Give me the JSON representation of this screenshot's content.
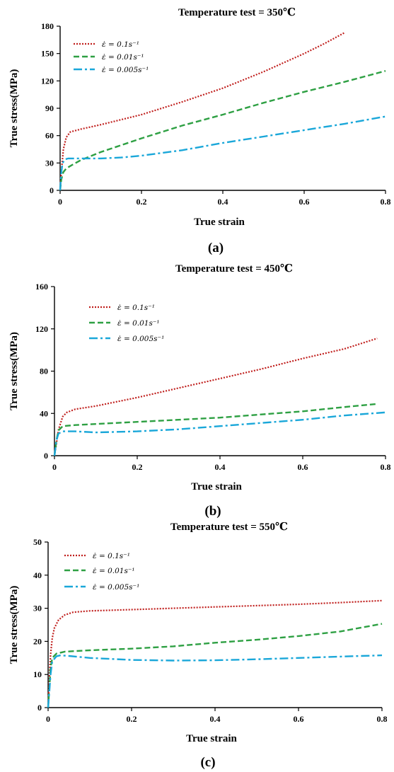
{
  "chart_data": [
    {
      "type": "line",
      "panel": "(a)",
      "title": "Temperature test = 350℃",
      "xlabel": "True strain",
      "ylabel": "True stress(MPa)",
      "xlim": [
        0,
        0.8
      ],
      "ylim": [
        0,
        180
      ],
      "xticks": [
        "0",
        "0.2",
        "0.4",
        "0.6",
        "0.8"
      ],
      "yticks": [
        "0",
        "30",
        "60",
        "90",
        "120",
        "150",
        "180"
      ],
      "legend_position": "top-left",
      "series": [
        {
          "name": "ε̇ = 0.1s⁻¹",
          "color": "#c0201e",
          "style": "dotted",
          "x": [
            0,
            0.003,
            0.008,
            0.015,
            0.025,
            0.05,
            0.1,
            0.2,
            0.3,
            0.4,
            0.5,
            0.6,
            0.65,
            0.7
          ],
          "y": [
            0,
            20,
            45,
            58,
            64,
            67,
            72,
            83,
            97,
            112,
            130,
            150,
            161,
            173
          ]
        },
        {
          "name": "ε̇ = 0.01s⁻¹",
          "color": "#2ea043",
          "style": "dashed",
          "x": [
            0,
            0.003,
            0.008,
            0.015,
            0.03,
            0.05,
            0.1,
            0.2,
            0.3,
            0.4,
            0.5,
            0.6,
            0.7,
            0.8
          ],
          "y": [
            0,
            12,
            20,
            24,
            28,
            33,
            42,
            57,
            71,
            83,
            96,
            108,
            119,
            131
          ]
        },
        {
          "name": "ε̇ = 0.005s⁻¹",
          "color": "#1aa7d9",
          "style": "dashdot",
          "x": [
            0,
            0.003,
            0.006,
            0.012,
            0.02,
            0.05,
            0.1,
            0.15,
            0.2,
            0.3,
            0.4,
            0.5,
            0.6,
            0.7,
            0.8
          ],
          "y": [
            0,
            20,
            30,
            34,
            35,
            35,
            35,
            36,
            38,
            44,
            52,
            59,
            66,
            73,
            81
          ]
        }
      ]
    },
    {
      "type": "line",
      "panel": "(b)",
      "title": "Temperature test = 450℃",
      "xlabel": "True strain",
      "ylabel": "True stress(MPa)",
      "xlim": [
        0,
        0.8
      ],
      "ylim": [
        0,
        160
      ],
      "xticks": [
        "0",
        "0.2",
        "0.4",
        "0.6",
        "0.8"
      ],
      "yticks": [
        "0",
        "40",
        "80",
        "120",
        "160"
      ],
      "legend_position": "top-left",
      "series": [
        {
          "name": "ε̇ = 0.1s⁻¹",
          "color": "#c0201e",
          "style": "dotted",
          "x": [
            0,
            0.005,
            0.01,
            0.02,
            0.03,
            0.05,
            0.1,
            0.2,
            0.3,
            0.4,
            0.5,
            0.6,
            0.7,
            0.78
          ],
          "y": [
            0,
            12,
            25,
            37,
            41,
            44,
            47,
            55,
            64,
            73,
            82,
            92,
            101,
            111
          ]
        },
        {
          "name": "ε̇ = 0.01s⁻¹",
          "color": "#2ea043",
          "style": "dashed",
          "x": [
            0,
            0.005,
            0.01,
            0.02,
            0.05,
            0.1,
            0.2,
            0.3,
            0.4,
            0.5,
            0.6,
            0.7,
            0.78
          ],
          "y": [
            0,
            15,
            24,
            28,
            29,
            30,
            32,
            34,
            36,
            39,
            42,
            46,
            49
          ]
        },
        {
          "name": "ε̇ = 0.005s⁻¹",
          "color": "#1aa7d9",
          "style": "dashdot",
          "x": [
            0,
            0.005,
            0.01,
            0.02,
            0.05,
            0.1,
            0.2,
            0.3,
            0.4,
            0.5,
            0.6,
            0.7,
            0.8
          ],
          "y": [
            0,
            15,
            21,
            23,
            23,
            22,
            23,
            25,
            28,
            31,
            34,
            38,
            41
          ]
        }
      ]
    },
    {
      "type": "line",
      "panel": "(c)",
      "title": "Temperature test = 550℃",
      "xlabel": "True strain",
      "ylabel": "True stress(MPa)",
      "xlim": [
        0,
        0.8
      ],
      "ylim": [
        0,
        50
      ],
      "xticks": [
        "0",
        "0.2",
        "0.4",
        "0.6",
        "0.8"
      ],
      "yticks": [
        "0",
        "10",
        "20",
        "30",
        "40",
        "50"
      ],
      "legend_position": "top-left",
      "series": [
        {
          "name": "ε̇ = 0.1s⁻¹",
          "color": "#c0201e",
          "style": "dotted",
          "x": [
            0,
            0.003,
            0.006,
            0.01,
            0.015,
            0.025,
            0.04,
            0.06,
            0.1,
            0.2,
            0.3,
            0.4,
            0.5,
            0.6,
            0.7,
            0.8
          ],
          "y": [
            0,
            9,
            16,
            21,
            24,
            26.5,
            28,
            28.8,
            29.2,
            29.6,
            30,
            30.4,
            30.8,
            31.2,
            31.7,
            32.3
          ]
        },
        {
          "name": "ε̇ = 0.01s⁻¹",
          "color": "#2ea043",
          "style": "dashed",
          "x": [
            0,
            0.003,
            0.006,
            0.01,
            0.02,
            0.04,
            0.1,
            0.2,
            0.3,
            0.4,
            0.5,
            0.6,
            0.7,
            0.8
          ],
          "y": [
            0,
            6,
            12,
            15,
            16.3,
            16.9,
            17.3,
            17.8,
            18.5,
            19.6,
            20.5,
            21.6,
            23,
            25.3
          ]
        },
        {
          "name": "ε̇ = 0.005s⁻¹",
          "color": "#1aa7d9",
          "style": "dashdot",
          "x": [
            0,
            0.003,
            0.006,
            0.01,
            0.02,
            0.03,
            0.05,
            0.1,
            0.2,
            0.3,
            0.4,
            0.5,
            0.6,
            0.7,
            0.8
          ],
          "y": [
            0,
            5,
            10,
            14,
            15.5,
            15.8,
            15.6,
            15,
            14.4,
            14.2,
            14.3,
            14.6,
            15,
            15.4,
            15.8
          ]
        }
      ]
    }
  ]
}
